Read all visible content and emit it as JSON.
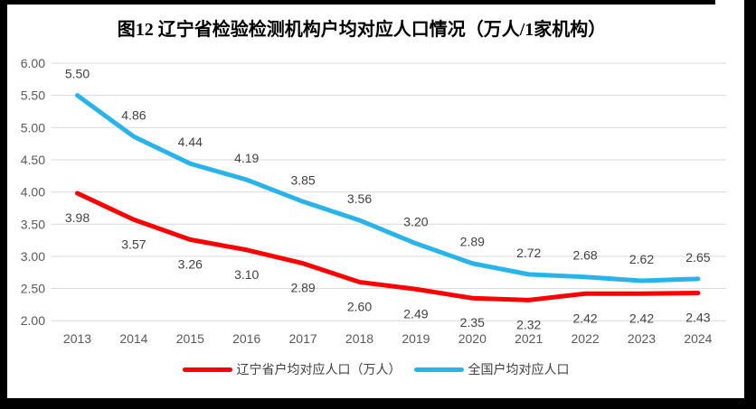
{
  "chart_data": {
    "type": "line",
    "title": "图12 辽宁省检验检测机构户均对应人口情况（万人/1家机构）",
    "categories": [
      2013,
      2014,
      2015,
      2016,
      2017,
      2018,
      2019,
      2020,
      2021,
      2022,
      2023,
      2024
    ],
    "series": [
      {
        "name": "辽宁省户均对应人口（万人）",
        "color": "#FE0000",
        "values": [
          3.98,
          3.57,
          3.26,
          3.1,
          2.89,
          2.6,
          2.49,
          2.35,
          2.32,
          2.42,
          2.42,
          2.43
        ],
        "data_label_position": "below"
      },
      {
        "name": "全国户均对应人口",
        "color": "#28B4EB",
        "values": [
          5.5,
          4.86,
          4.44,
          4.19,
          3.85,
          3.56,
          3.2,
          2.89,
          2.72,
          2.68,
          2.62,
          2.65
        ],
        "data_label_position": "above"
      }
    ],
    "ylim": [
      2.0,
      6.0
    ],
    "ytick_step": 0.5,
    "ytick_labels": [
      "6.00",
      "5.50",
      "5.00",
      "4.50",
      "4.00",
      "3.50",
      "3.00",
      "2.50",
      "2.00"
    ],
    "grid": true,
    "gridline_color": "#D9D9D9",
    "tick_label_color": "#595959",
    "data_label_color": "#404040",
    "legend_position": "bottom",
    "frame_color": "#000000"
  }
}
